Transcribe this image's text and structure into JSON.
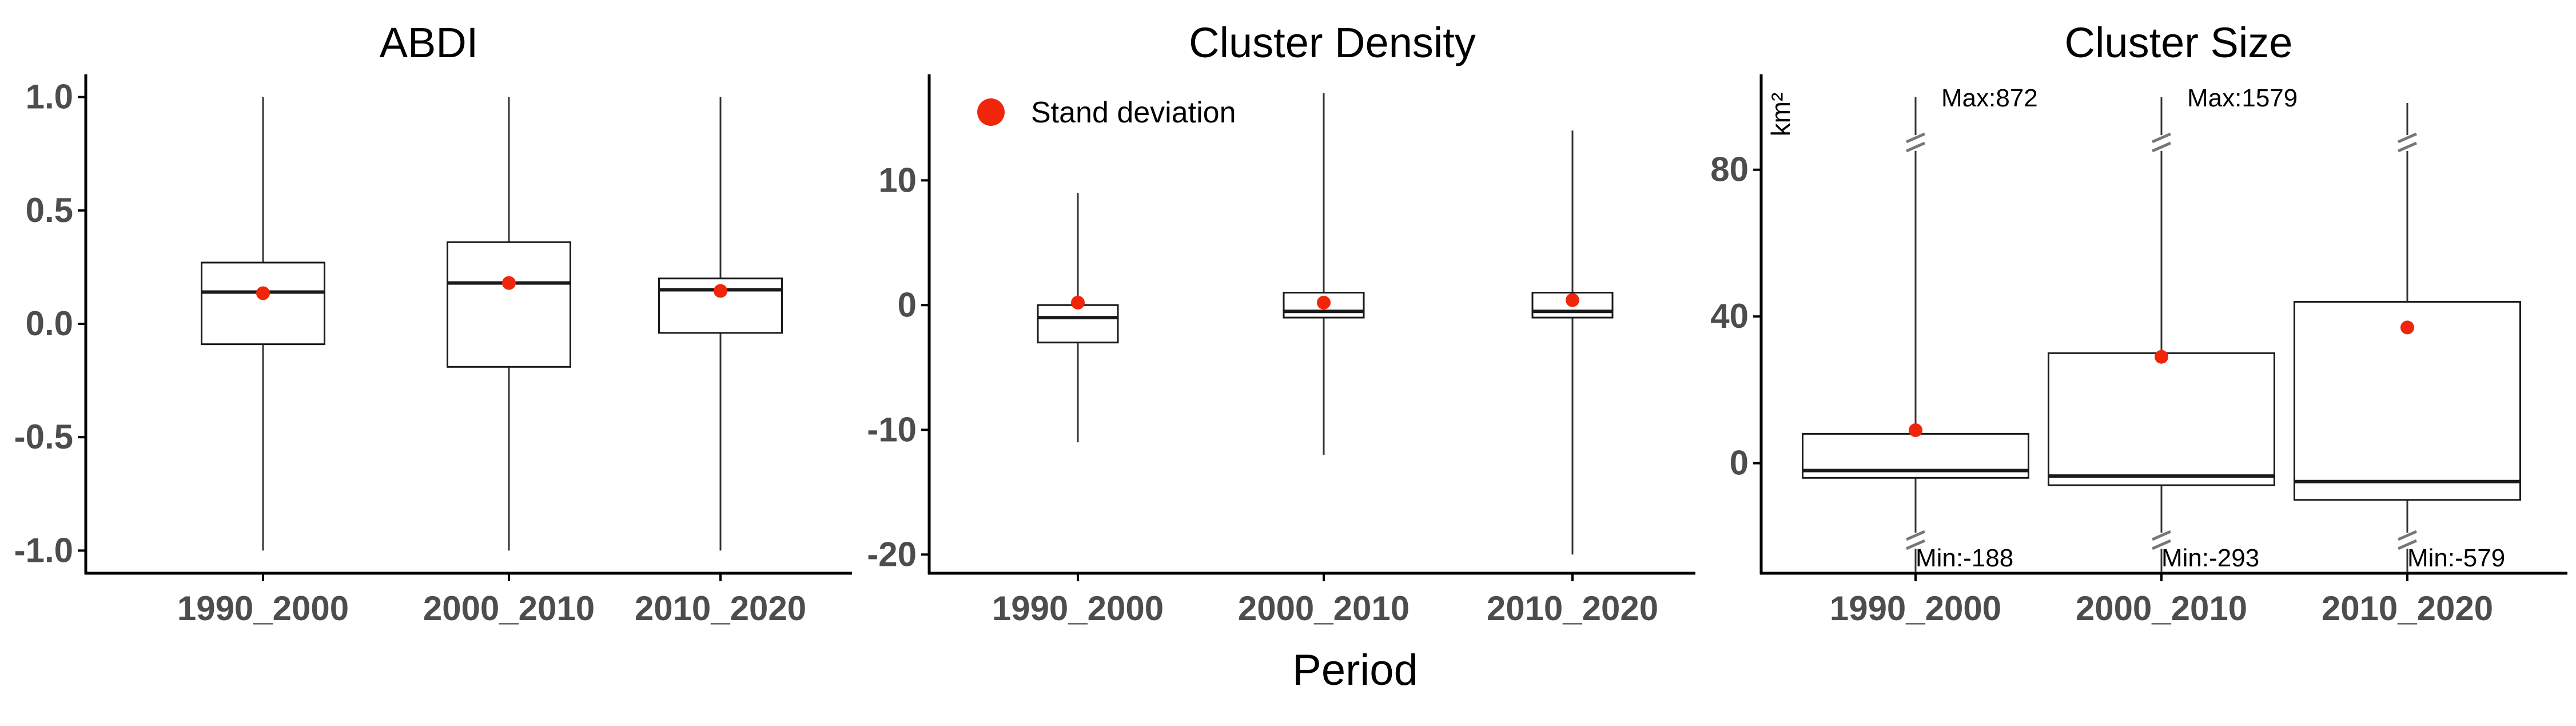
{
  "x_axis_title": "Period",
  "colors": {
    "mean_point": "#f0250a",
    "box_stroke": "#1a1a1a",
    "axis": "#000000",
    "tick_text": "#4d4d4d"
  },
  "legend": {
    "label": "Stand deviation",
    "marker": "red-dot"
  },
  "chart_data": [
    {
      "type": "box",
      "title": "ABDI",
      "ylabel": "",
      "ylim": [
        -1.1,
        1.1
      ],
      "yticks": [
        -1.0,
        -0.5,
        0.0,
        0.5,
        1.0
      ],
      "ytick_labels": [
        "-1.0",
        "-0.5",
        "0.0",
        "0.5",
        "1.0"
      ],
      "categories": [
        "1990_2000",
        "2000_2010",
        "2010_2020"
      ],
      "boxes": [
        {
          "min": -1.0,
          "q1": -0.09,
          "median": 0.14,
          "q3": 0.27,
          "max": 1.0,
          "mean": 0.135
        },
        {
          "min": -1.0,
          "q1": -0.19,
          "median": 0.18,
          "q3": 0.36,
          "max": 1.0,
          "mean": 0.18
        },
        {
          "min": -1.0,
          "q1": -0.04,
          "median": 0.15,
          "q3": 0.2,
          "max": 1.0,
          "mean": 0.145
        }
      ]
    },
    {
      "type": "box",
      "title": "Cluster Density",
      "ylabel": "",
      "ylim": [
        -21.5,
        18.5
      ],
      "yticks": [
        -20,
        -10,
        0,
        10
      ],
      "ytick_labels": [
        "-20",
        "-10",
        "0",
        "10"
      ],
      "categories": [
        "1990_2000",
        "2000_2010",
        "2010_2020"
      ],
      "legend_position": "top-left",
      "boxes": [
        {
          "min": -11,
          "q1": -3,
          "median": -1,
          "q3": 0,
          "max": 9,
          "mean": 0.2
        },
        {
          "min": -12,
          "q1": -1,
          "median": -0.5,
          "q3": 1,
          "max": 17,
          "mean": 0.2
        },
        {
          "min": -20,
          "q1": -1,
          "median": -0.5,
          "q3": 1,
          "max": 14,
          "mean": 0.4
        }
      ]
    },
    {
      "type": "box",
      "title": "Cluster Size",
      "ylabel": "km²",
      "ylim": [
        -30,
        106
      ],
      "yticks": [
        0,
        40,
        80
      ],
      "ytick_labels": [
        "0",
        "40",
        "80"
      ],
      "categories": [
        "1990_2000",
        "2000_2010",
        "2010_2020"
      ],
      "axis_break": true,
      "boxes": [
        {
          "min": -188,
          "q1": -4,
          "median": -2,
          "q3": 8,
          "max": 872,
          "mean": 9,
          "min_label": "Min:-188",
          "max_label": "Max:872"
        },
        {
          "min": -293,
          "q1": -6,
          "median": -3.5,
          "q3": 30,
          "max": 1579,
          "mean": 29,
          "min_label": "Min:-293",
          "max_label": "Max:1579"
        },
        {
          "min": -579,
          "q1": -10,
          "median": -5,
          "q3": 44,
          "max": null,
          "mean": 37,
          "min_label": "Min:-579",
          "max_label": ""
        }
      ]
    }
  ]
}
